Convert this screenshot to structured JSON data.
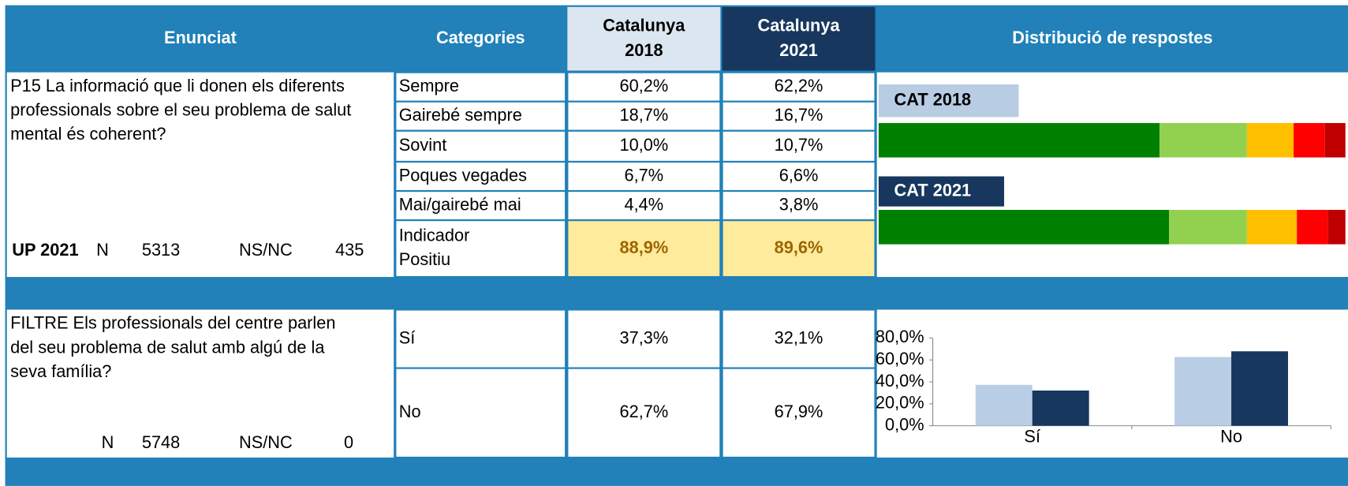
{
  "header": {
    "columns": [
      [
        "Enunciat"
      ],
      [
        "Categories"
      ],
      [
        "Catalunya",
        "2018"
      ],
      [
        "Catalunya",
        "2021"
      ],
      [
        "Distribució de respostes"
      ]
    ]
  },
  "questions": [
    {
      "lines": [
        "P15 La informació que li donen els diferents",
        "professionals sobre el seu problema de salut",
        "mental és coherent?"
      ],
      "footer": {
        "label": "UP 2021",
        "n_label": "N",
        "n": 5313,
        "nsnc_label": "NS/NC",
        "nsnc": 435
      },
      "highlight_last_row": true,
      "rows": [
        [
          [
            "Sempre"
          ],
          "60,2%",
          "62,2%"
        ],
        [
          [
            "Gairebé sempre"
          ],
          "18,7%",
          "16,7%"
        ],
        [
          [
            "Sovint"
          ],
          "10,0%",
          "10,7%"
        ],
        [
          [
            "Poques vegades"
          ],
          "6,7%",
          "6,6%"
        ],
        [
          [
            "Mai/gairebé mai"
          ],
          "4,4%",
          "3,8%"
        ],
        [
          [
            "Indicador",
            "Positiu"
          ],
          "88,9%",
          "89,6%"
        ]
      ]
    },
    {
      "lines": [
        "FILTRE Els professionals del centre parlen",
        "del seu problema de salut amb algú de la",
        "seva família?"
      ],
      "footer": {
        "n_label": "N",
        "n": 5748,
        "nsnc_label": "NS/NC",
        "nsnc": 0
      },
      "highlight_last_row": false,
      "rows": [
        [
          [
            "Sí"
          ],
          "37,3%",
          "32,1%"
        ],
        [
          [
            "No"
          ],
          "62,7%",
          "67,9%"
        ]
      ]
    }
  ],
  "chart_data": [
    {
      "type": "stacked_bar",
      "categories": [
        "CAT 2018",
        "CAT 2021"
      ],
      "label_colors": [
        "#b8cce4",
        "#17375e"
      ],
      "label_text_colors": [
        "#000000",
        "#ffffff"
      ],
      "series": [
        {
          "color": "#008000",
          "values": [
            60.2,
            62.2
          ]
        },
        {
          "color": "#92d050",
          "values": [
            18.7,
            16.7
          ]
        },
        {
          "color": "#ffc000",
          "values": [
            10.0,
            10.7
          ]
        },
        {
          "color": "#ff0000",
          "values": [
            6.7,
            6.6
          ]
        },
        {
          "color": "#c00000",
          "values": [
            4.4,
            3.8
          ]
        }
      ]
    },
    {
      "type": "bar",
      "categories": [
        "Sí",
        "No"
      ],
      "series": [
        {
          "color": "#b9cde5",
          "values": [
            37.3,
            62.7
          ]
        },
        {
          "color": "#17375e",
          "values": [
            32.1,
            67.9
          ]
        }
      ],
      "ylim": [
        0,
        80
      ],
      "yticks": [
        {
          "value": 0,
          "label": "0,0%"
        },
        {
          "value": 20,
          "label": "20,0%"
        },
        {
          "value": 40,
          "label": "40,0%"
        },
        {
          "value": 60,
          "label": "60,0%"
        },
        {
          "value": 80,
          "label": "80,0%"
        }
      ]
    }
  ]
}
